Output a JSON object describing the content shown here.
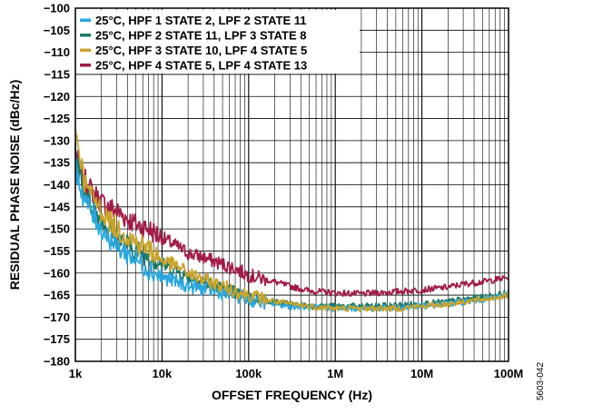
{
  "chart_data": {
    "type": "line",
    "xlabel": "OFFSET FREQUENCY (Hz)",
    "ylabel": "RESIDUAL PHASE NOISE (dBc/Hz)",
    "x_scale": "log",
    "xlim": [
      1000,
      100000000
    ],
    "ylim": [
      -180,
      -100
    ],
    "x_ticks": [
      1000,
      10000,
      100000,
      1000000,
      10000000,
      100000000
    ],
    "x_tick_labels": [
      "1k",
      "10k",
      "100k",
      "1M",
      "10M",
      "100M"
    ],
    "y_ticks": [
      -100,
      -105,
      -110,
      -115,
      -120,
      -125,
      -130,
      -135,
      -140,
      -145,
      -150,
      -155,
      -160,
      -165,
      -170,
      -175,
      -180
    ],
    "y_tick_labels": [
      "−100",
      "−105",
      "−110",
      "−115",
      "−120",
      "−125",
      "−130",
      "−135",
      "−140",
      "−145",
      "−150",
      "−155",
      "−160",
      "−165",
      "−170",
      "−175",
      "−180"
    ],
    "grid": true,
    "legend_position": "top-left",
    "figure_code": "5603-042",
    "series": [
      {
        "name": "25°C, HPF 1 STATE 2, LPF 2 STATE 11",
        "color": "#29a6de",
        "x": [
          1000,
          1200,
          1500,
          2000,
          3000,
          5000,
          7000,
          10000,
          15000,
          20000,
          30000,
          50000,
          70000,
          100000,
          200000,
          300000,
          500000,
          1000000,
          2000000,
          3000000,
          5000000,
          10000000,
          20000000,
          30000000,
          50000000,
          100000000
        ],
        "y": [
          -136,
          -142,
          -146,
          -150,
          -154,
          -157,
          -159,
          -161,
          -162,
          -163,
          -163.5,
          -164.5,
          -165,
          -166,
          -167,
          -167.5,
          -167.8,
          -168,
          -168,
          -168,
          -167.8,
          -167.5,
          -167,
          -166.5,
          -166,
          -165
        ]
      },
      {
        "name": "25°C, HPF 2 STATE 11, LPF 3 STATE 8",
        "color": "#1a7a6a",
        "x": [
          1000,
          1200,
          1500,
          2000,
          3000,
          5000,
          7000,
          10000,
          15000,
          20000,
          30000,
          50000,
          70000,
          100000,
          200000,
          300000,
          500000,
          1000000,
          2000000,
          3000000,
          5000000,
          10000000,
          20000000,
          30000000,
          50000000,
          100000000
        ],
        "y": [
          -133,
          -140,
          -144,
          -148,
          -152,
          -155,
          -156,
          -158,
          -159.5,
          -161,
          -162,
          -163.5,
          -164.5,
          -165.5,
          -166.5,
          -167,
          -167.5,
          -167.5,
          -167.5,
          -167.5,
          -167.3,
          -167,
          -166.5,
          -166,
          -165.5,
          -164.5
        ]
      },
      {
        "name": "25°C, HPF 3 STATE 10, LPF 4 STATE 5",
        "color": "#c8a42c",
        "x": [
          1000,
          1100,
          1300,
          1500,
          2000,
          3000,
          5000,
          7000,
          10000,
          15000,
          20000,
          30000,
          50000,
          70000,
          100000,
          200000,
          300000,
          500000,
          1000000,
          2000000,
          3000000,
          5000000,
          10000000,
          20000000,
          30000000,
          50000000,
          100000000
        ],
        "y": [
          -128,
          -132,
          -140,
          -142,
          -146,
          -150,
          -153,
          -154.5,
          -157,
          -158.5,
          -160,
          -161.5,
          -163,
          -164,
          -165,
          -166.5,
          -167,
          -167.5,
          -168,
          -168,
          -168,
          -168,
          -167.5,
          -167,
          -166.5,
          -166,
          -165
        ]
      },
      {
        "name": "25°C, HPF 4 STATE 5, LPF 4 STATE 13",
        "color": "#a01c46",
        "x": [
          1000,
          1200,
          1500,
          2000,
          3000,
          5000,
          7000,
          10000,
          15000,
          20000,
          30000,
          50000,
          70000,
          100000,
          200000,
          300000,
          500000,
          1000000,
          2000000,
          3000000,
          5000000,
          10000000,
          20000000,
          30000000,
          50000000,
          100000000
        ],
        "y": [
          -133,
          -138,
          -141,
          -144,
          -146,
          -149,
          -150,
          -152,
          -154,
          -155.5,
          -156.5,
          -158,
          -159,
          -160.5,
          -162,
          -163,
          -164,
          -164.5,
          -164.7,
          -164.5,
          -164.2,
          -163.8,
          -163.2,
          -162.5,
          -162,
          -161
        ]
      }
    ]
  }
}
